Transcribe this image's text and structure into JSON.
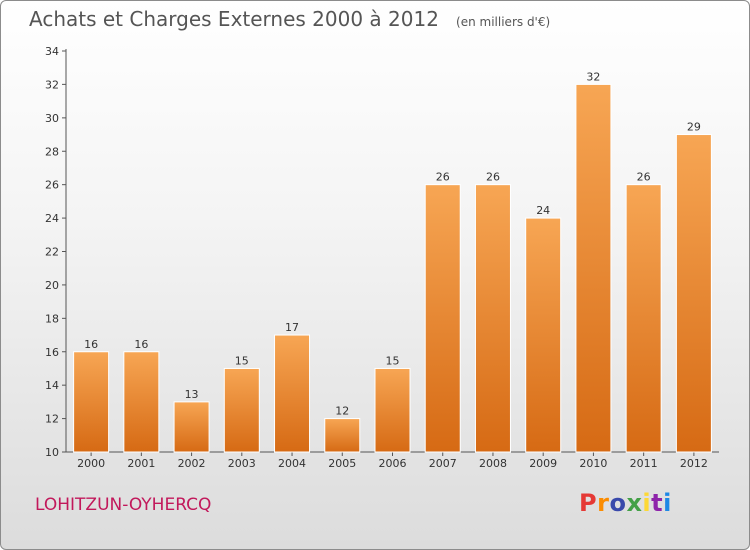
{
  "page": {
    "title": "Achats et Charges Externes 2000 à 2012",
    "unit_note": "(en milliers d'€)",
    "commune": "LOHITZUN-OYHERCQ",
    "brand": "Proxiti"
  },
  "colors": {
    "bar_light": "#f7a654",
    "bar_dark": "#d66a14",
    "commune_text": "#c2185b",
    "brand_letters": [
      "#e53935",
      "#fb8c00",
      "#3949ab",
      "#43a047",
      "#fdd835",
      "#8e24aa",
      "#1e88e5"
    ]
  },
  "chart_data": {
    "type": "bar",
    "title": "Achats et Charges Externes 2000 à 2012",
    "subtitle": "(en milliers d'€)",
    "categories": [
      "2000",
      "2001",
      "2002",
      "2003",
      "2004",
      "2005",
      "2006",
      "2007",
      "2008",
      "2009",
      "2010",
      "2011",
      "2012"
    ],
    "values": [
      16,
      16,
      13,
      15,
      17,
      12,
      15,
      26,
      26,
      24,
      32,
      26,
      29
    ],
    "xlabel": "",
    "ylabel": "",
    "ylim": [
      10,
      34
    ],
    "yticks": [
      10,
      12,
      14,
      16,
      18,
      20,
      22,
      24,
      26,
      28,
      30,
      32,
      34
    ],
    "grid": false,
    "legend": "none"
  }
}
